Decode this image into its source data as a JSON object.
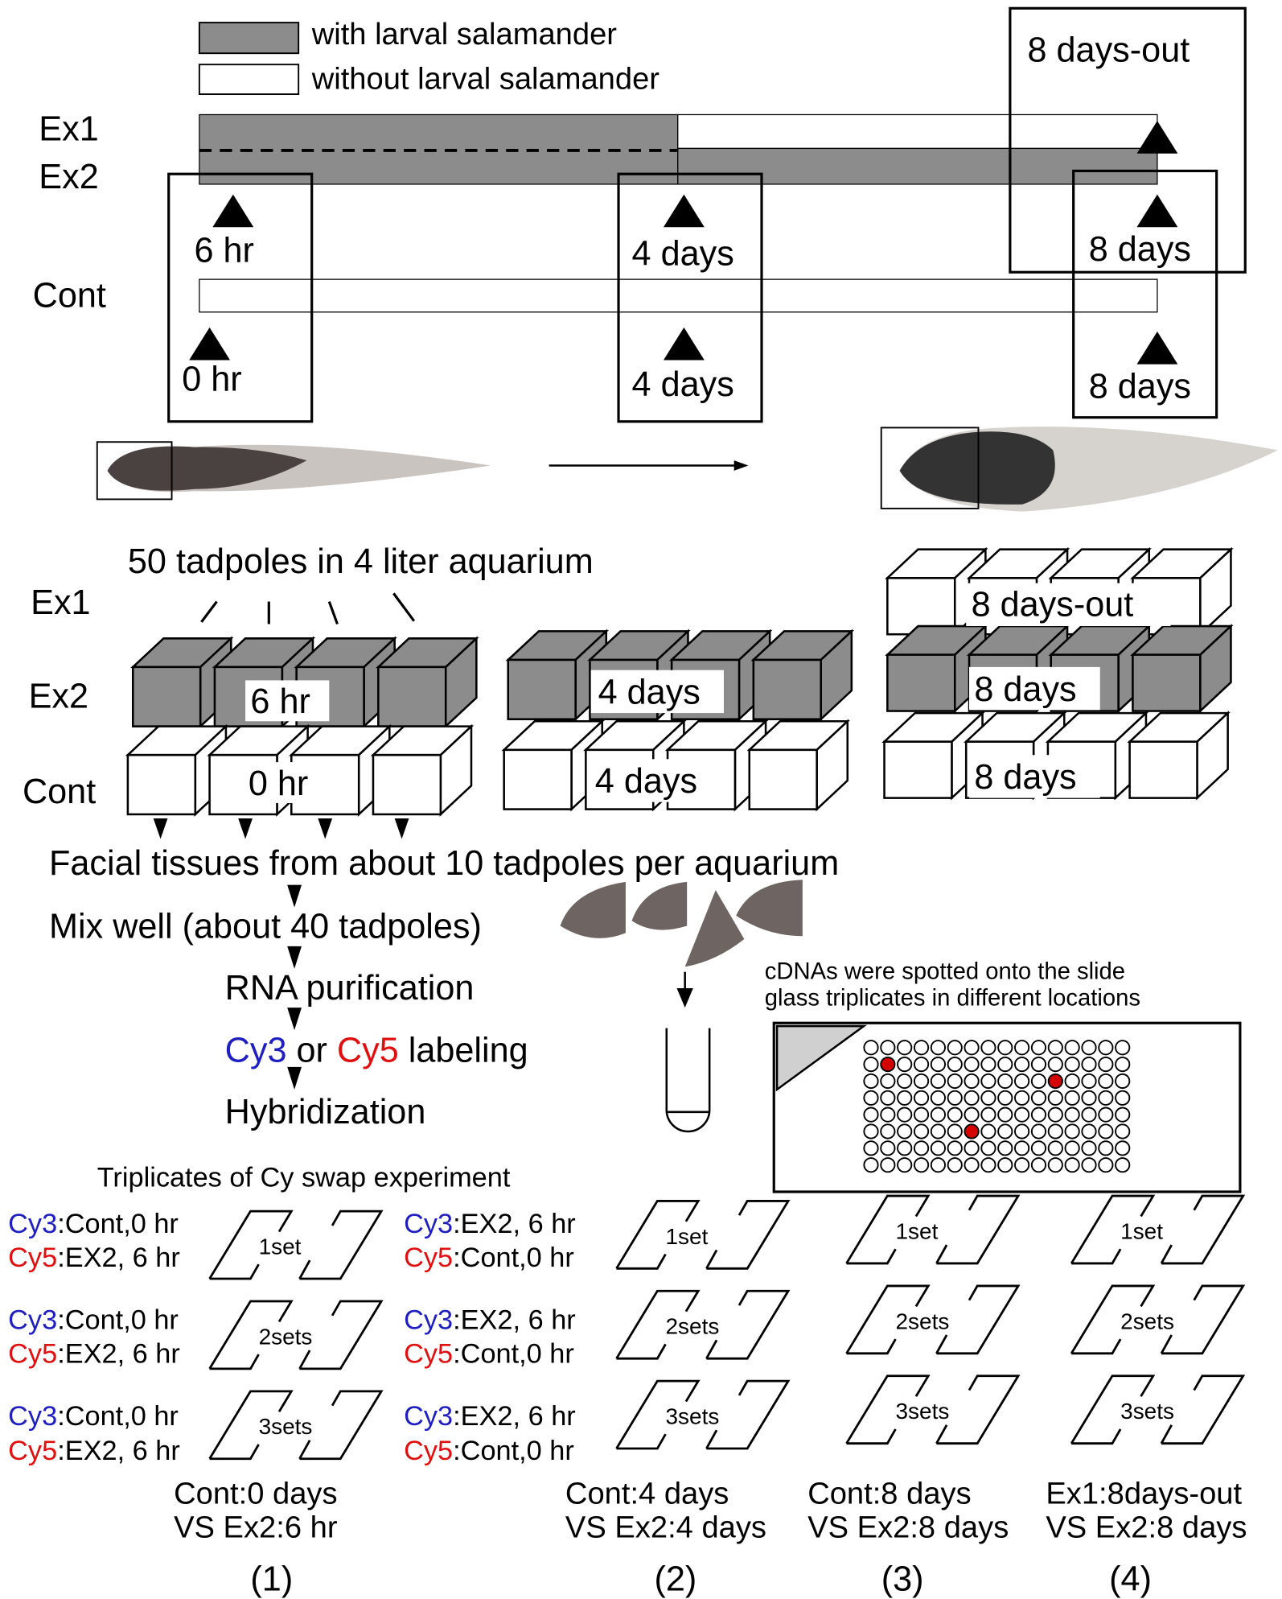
{
  "legend": {
    "with": "with larval salamander",
    "without": "without larval salamander",
    "colors": {
      "with": "#8c8c8c",
      "without": "#ffffff"
    }
  },
  "timeline": {
    "rows": {
      "ex1": "Ex1",
      "ex2": "Ex2",
      "cont": "Cont"
    },
    "ex_points": [
      "6 hr",
      "4 days",
      "8 days"
    ],
    "cont_points": [
      "0 hr",
      "4 days",
      "8 days"
    ],
    "ex1_out": "8 days-out"
  },
  "aquarium": {
    "title": "50 tadpoles in 4 liter aquarium",
    "rows": {
      "ex1": "Ex1",
      "ex2": "Ex2",
      "cont": "Cont"
    },
    "labels": {
      "g1_ex2": "6 hr",
      "g1_cont": "0 hr",
      "g2_ex2": "4 days",
      "g2_cont": "4 days",
      "g3_ex1": "8 days-out",
      "g3_ex2": "8 days",
      "g3_cont": "8 days"
    }
  },
  "steps": [
    "Facial tissues from about 10 tadpoles per aquarium",
    "Mix well (about 40 tadpoles)",
    "RNA purification",
    "Hybridization"
  ],
  "labeling": {
    "cy3": "Cy3",
    "or": " or ",
    "cy5": "Cy5",
    "rest": " labeling"
  },
  "slide": {
    "note_line1": "cDNAs were spotted onto the slide",
    "note_line2": "glass triplicates in different locations",
    "grid": {
      "cols": 16,
      "rows": 8,
      "highlighted": [
        [
          1,
          1
        ],
        [
          11,
          2
        ],
        [
          6,
          5
        ]
      ]
    },
    "highlight_color": "#d40000"
  },
  "colors": {
    "cy3": "#1f1fc0",
    "cy5": "#e01010",
    "gray": "#8c8c8c"
  },
  "swap": {
    "title": "Triplicates of Cy swap experiment",
    "col1": {
      "cy3": "Cy3",
      "cy3_val": ":Cont,0 hr",
      "cy5": "Cy5",
      "cy5_val": ":EX2, 6 hr"
    },
    "col2": {
      "cy3": "Cy3",
      "cy3_val": ":EX2, 6 hr",
      "cy5": "Cy5",
      "cy5_val": ":Cont,0 hr"
    },
    "sets": [
      "1set",
      "2sets",
      "3sets"
    ]
  },
  "comparisons": [
    {
      "line1": "Cont:0 days",
      "line2": "VS Ex2:6 hr",
      "num": "(1)"
    },
    {
      "line1": "Cont:4 days",
      "line2": "VS Ex2:4 days",
      "num": "(2)"
    },
    {
      "line1": "Cont:8 days",
      "line2": "VS Ex2:8 days",
      "num": "(3)"
    },
    {
      "line1": "Ex1:8days-out",
      "line2": "VS Ex2:8 days",
      "num": "(4)"
    }
  ]
}
